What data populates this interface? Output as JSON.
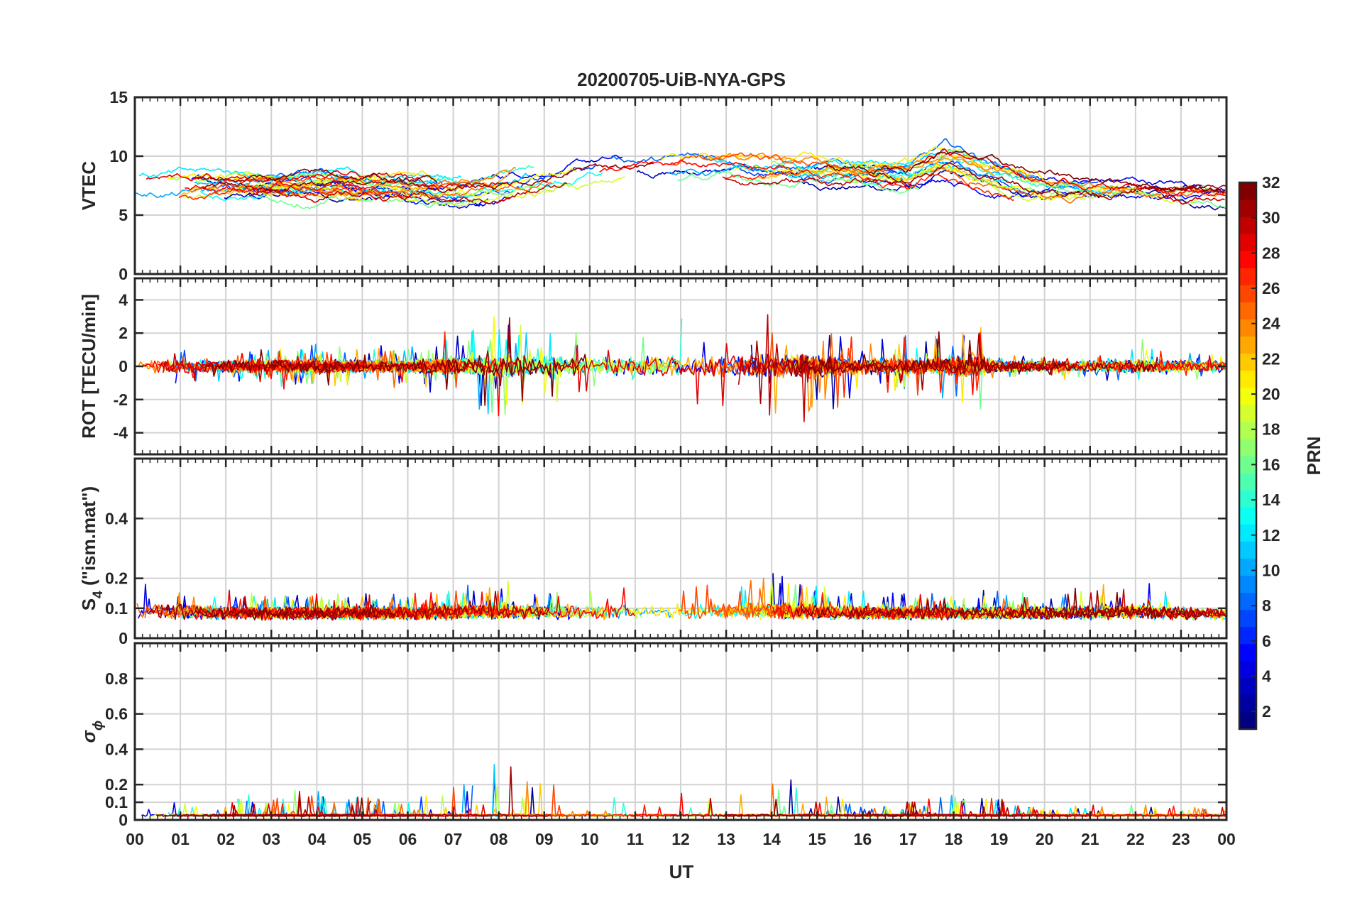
{
  "figure": {
    "title": "20200705-UiB-NYA-GPS",
    "xlabel": "UT"
  },
  "chart_data": [
    {
      "type": "line",
      "id": "vtec",
      "title": "20200705-UiB-NYA-GPS",
      "ylabel": "VTEC",
      "ylim": [
        0,
        15
      ],
      "yticks": [
        0,
        5,
        10,
        15
      ],
      "ytick_labels": [
        "0",
        "5",
        "10",
        "15"
      ],
      "xlim": [
        0,
        24
      ],
      "grid": true,
      "series_color_by": "PRN",
      "envelope_x": [
        0,
        2,
        4,
        6,
        7,
        8,
        9,
        10,
        11,
        12,
        13,
        14,
        15,
        16,
        17,
        17.8,
        19,
        20,
        21,
        22,
        23,
        24
      ],
      "envelope_mid": [
        7.4,
        7.4,
        7.6,
        7.2,
        7.0,
        7.5,
        8.2,
        8.8,
        9.0,
        9.0,
        9.0,
        8.8,
        8.6,
        8.4,
        8.4,
        9.6,
        8.2,
        7.4,
        7.4,
        7.4,
        7.0,
        7.0
      ],
      "envelope_half_width": [
        1.5,
        1.4,
        1.3,
        1.2,
        1.7,
        2.0,
        2.0,
        1.8,
        1.3,
        1.2,
        1.3,
        1.2,
        1.1,
        1.2,
        1.5,
        1.9,
        1.7,
        1.4,
        1.0,
        1.0,
        1.2,
        1.2
      ]
    },
    {
      "type": "line",
      "id": "rot",
      "ylabel": "ROT [TECU/min]",
      "ylim": [
        -5.3,
        5.3
      ],
      "yticks": [
        -4,
        -2,
        0,
        2,
        4
      ],
      "ytick_labels": [
        "-4",
        "-2",
        "0",
        "2",
        "4"
      ],
      "xlim": [
        0,
        24
      ],
      "grid": true,
      "series_color_by": "PRN",
      "envelope_x": [
        0,
        2,
        4,
        6,
        7,
        8,
        9,
        10,
        11,
        12,
        13,
        14,
        14.8,
        16,
        17.5,
        18.5,
        19,
        20,
        21,
        22,
        23,
        24
      ],
      "envelope_amp": [
        0.7,
        0.5,
        0.6,
        0.6,
        1.0,
        1.6,
        1.2,
        1.1,
        1.3,
        1.5,
        1.5,
        1.8,
        1.8,
        0.8,
        1.0,
        1.6,
        0.4,
        0.3,
        0.3,
        0.8,
        0.4,
        0.4
      ]
    },
    {
      "type": "line",
      "id": "s4",
      "ylabel": "S",
      "ylabel_subscript": "4",
      "ylabel_suffix": " (\"ism.mat\")",
      "ylim": [
        0,
        0.6
      ],
      "yticks": [
        0,
        0.1,
        0.2,
        0.4
      ],
      "ytick_labels": [
        "0",
        "0.1",
        "0.2",
        "0.4"
      ],
      "xlim": [
        0,
        24
      ],
      "grid": true,
      "series_color_by": "PRN",
      "baseline": 0.075,
      "peak_envelope_x": [
        0,
        2,
        4,
        6,
        8,
        10,
        12,
        14,
        16,
        18,
        20,
        22,
        24
      ],
      "peak_envelope": [
        0.16,
        0.12,
        0.12,
        0.12,
        0.14,
        0.13,
        0.15,
        0.16,
        0.12,
        0.12,
        0.12,
        0.14,
        0.1
      ]
    },
    {
      "type": "line",
      "id": "sigma_phi",
      "ylabel": "σ",
      "ylabel_subscript": "ϕ",
      "ylim": [
        0,
        1
      ],
      "yticks": [
        0,
        0.1,
        0.2,
        0.4,
        0.6,
        0.8
      ],
      "ytick_labels": [
        "0",
        "0.1",
        "0.2",
        "0.4",
        "0.6",
        "0.8"
      ],
      "xlim": [
        0,
        24
      ],
      "grid": true,
      "series_color_by": "PRN",
      "baseline": 0.02,
      "spike_envelope_x": [
        0,
        4,
        6,
        7,
        8,
        9,
        10,
        11,
        12,
        13,
        14,
        15,
        16,
        18,
        19,
        20,
        22,
        24
      ],
      "spike_envelope": [
        0.03,
        0.1,
        0.05,
        0.12,
        0.2,
        0.14,
        0.08,
        0.06,
        0.1,
        0.08,
        0.16,
        0.12,
        0.03,
        0.08,
        0.06,
        0.03,
        0.04,
        0.03
      ]
    }
  ],
  "x_axis": {
    "ticks": [
      0,
      1,
      2,
      3,
      4,
      5,
      6,
      7,
      8,
      9,
      10,
      11,
      12,
      13,
      14,
      15,
      16,
      17,
      18,
      19,
      20,
      21,
      22,
      23,
      24
    ],
    "tick_labels": [
      "00",
      "01",
      "02",
      "03",
      "04",
      "05",
      "06",
      "07",
      "08",
      "09",
      "10",
      "11",
      "12",
      "13",
      "14",
      "15",
      "16",
      "17",
      "18",
      "19",
      "20",
      "21",
      "22",
      "23",
      "00"
    ],
    "range": [
      0,
      24
    ],
    "label": "UT"
  },
  "colorbar": {
    "label": "PRN",
    "range": [
      1,
      32
    ],
    "ticks": [
      2,
      4,
      6,
      8,
      10,
      12,
      14,
      16,
      18,
      20,
      22,
      24,
      26,
      28,
      30,
      32
    ],
    "tick_labels": [
      "2",
      "4",
      "6",
      "8",
      "10",
      "12",
      "14",
      "16",
      "18",
      "20",
      "22",
      "24",
      "26",
      "28",
      "30",
      "32"
    ],
    "colormap": "jet",
    "segments": 32
  },
  "series_prns": [
    2,
    3,
    4,
    5,
    7,
    8,
    10,
    11,
    12,
    13,
    14,
    16,
    17,
    18,
    19,
    20,
    21,
    22,
    23,
    24,
    25,
    26,
    27,
    28,
    29,
    30,
    31,
    32
  ]
}
